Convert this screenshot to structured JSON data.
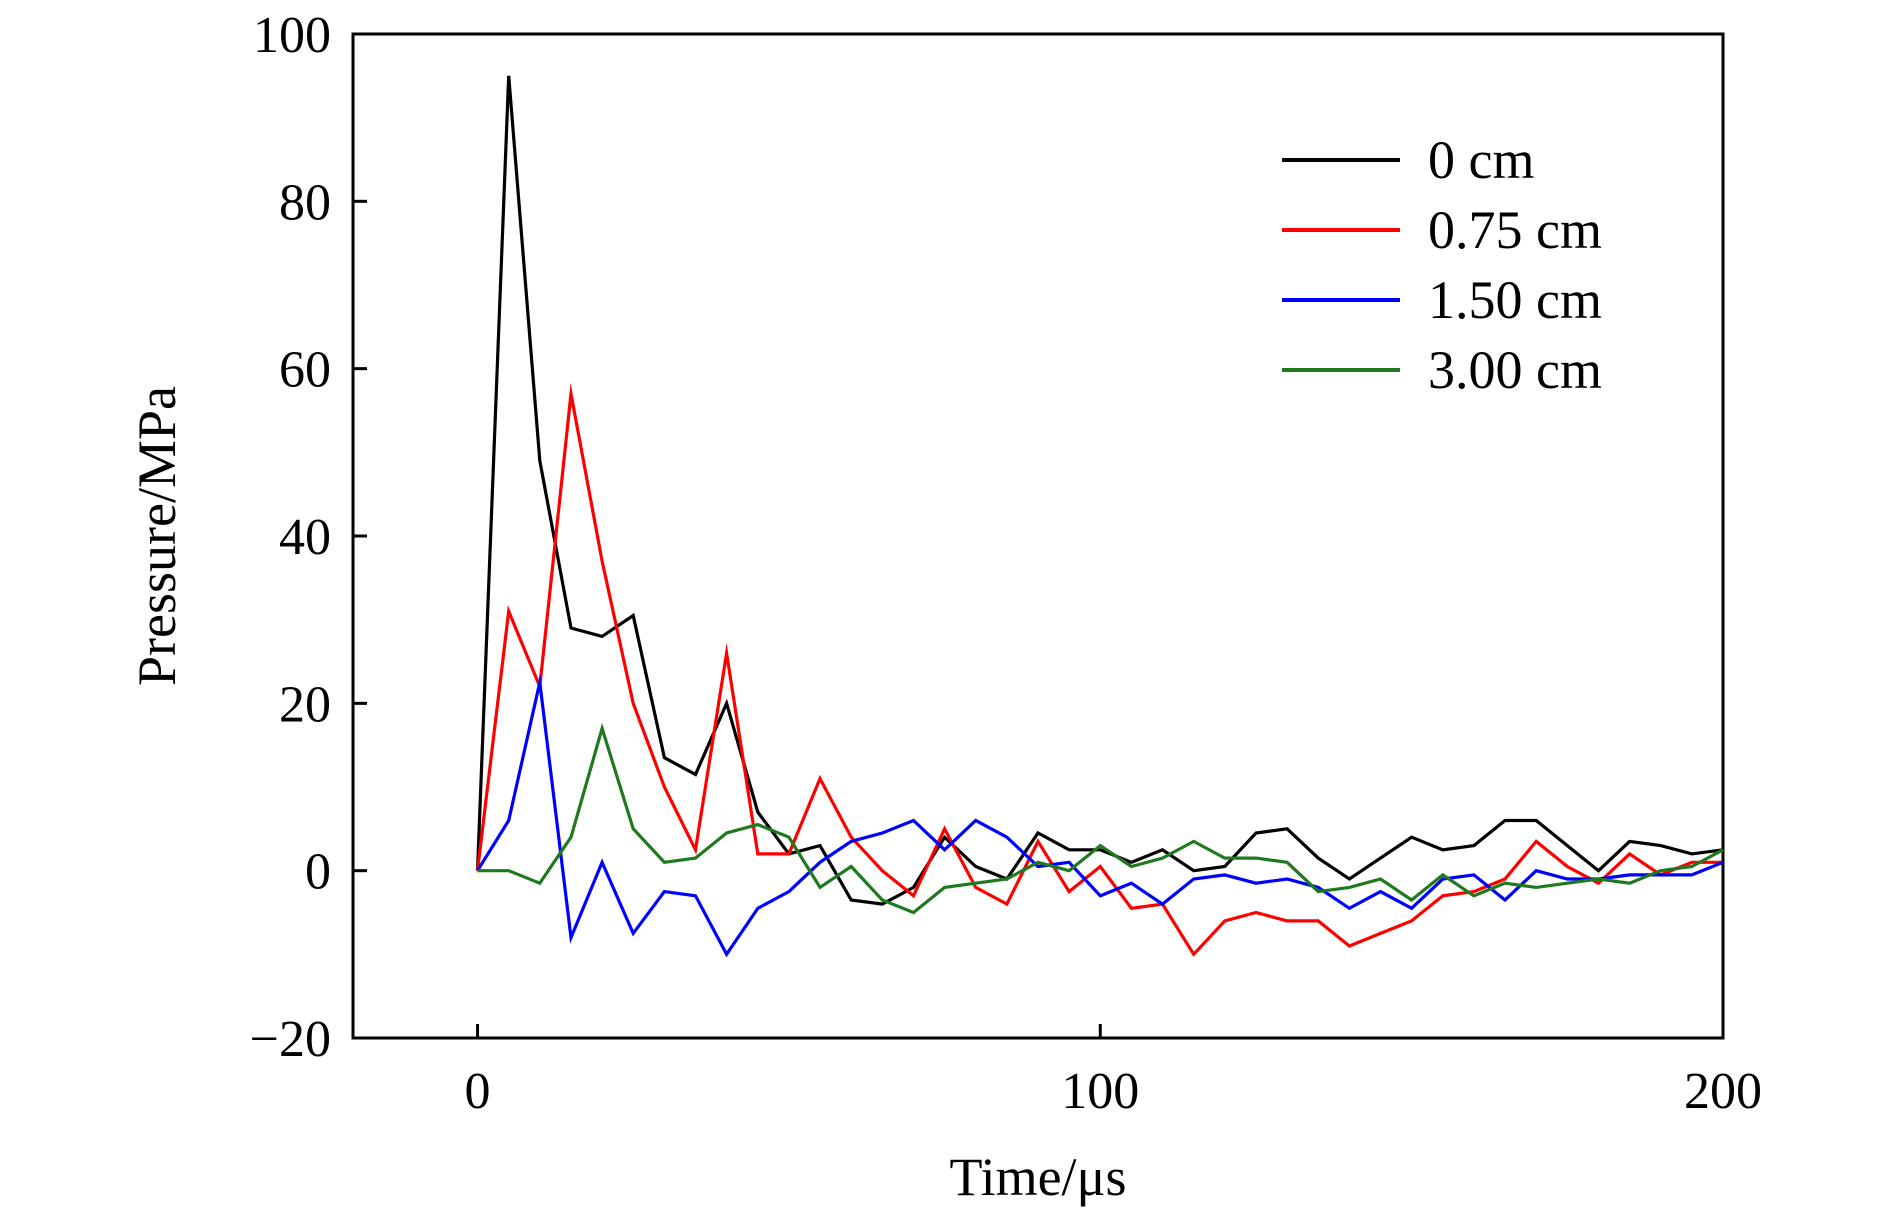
{
  "chart_data": {
    "type": "line",
    "title": "",
    "xlabel": "Time/μs",
    "ylabel": "Pressure/MPa",
    "xlim": [
      -20,
      200
    ],
    "ylim": [
      -20,
      100
    ],
    "xticks": [
      0,
      100,
      200
    ],
    "yticks": [
      -20,
      0,
      20,
      40,
      60,
      80,
      100
    ],
    "xtick_labels": [
      "0",
      "100",
      "200"
    ],
    "ytick_labels": [
      "−20",
      "0",
      "20",
      "40",
      "60",
      "80",
      "100"
    ],
    "grid": false,
    "legend_position": "top-right",
    "series": [
      {
        "name": "0 cm",
        "color": "#000000",
        "x": [
          0,
          5,
          10,
          15,
          20,
          25,
          30,
          35,
          40,
          45,
          50,
          55,
          60,
          65,
          70,
          75,
          80,
          85,
          90,
          95,
          100,
          105,
          110,
          115,
          120,
          125,
          130,
          135,
          140,
          145,
          150,
          155,
          160,
          165,
          170,
          175,
          180,
          185,
          190,
          195,
          200
        ],
        "y": [
          0,
          95,
          49,
          29,
          28,
          30.5,
          13.5,
          11.5,
          20,
          7,
          2,
          3,
          -3.5,
          -4,
          -2,
          4,
          0.5,
          -1,
          4.5,
          2.5,
          2.5,
          1,
          2.5,
          0,
          0.5,
          4.5,
          5,
          1.5,
          -1,
          1.5,
          4,
          2.5,
          3,
          6,
          6,
          3,
          0,
          3.5,
          3,
          2,
          2.5
        ]
      },
      {
        "name": "0.75 cm",
        "color": "#ff0000",
        "x": [
          0,
          5,
          10,
          15,
          20,
          25,
          30,
          35,
          40,
          45,
          50,
          55,
          60,
          65,
          70,
          75,
          80,
          85,
          90,
          95,
          100,
          105,
          110,
          115,
          120,
          125,
          130,
          135,
          140,
          145,
          150,
          155,
          160,
          165,
          170,
          175,
          180,
          185,
          190,
          195,
          200
        ],
        "y": [
          0,
          31,
          22,
          57,
          37,
          20,
          10,
          2.5,
          26,
          2,
          2,
          11,
          4,
          0,
          -3,
          5,
          -2,
          -4,
          3.5,
          -2.5,
          0.5,
          -4.5,
          -4,
          -10,
          -6,
          -5,
          -6,
          -6,
          -9,
          -7.5,
          -6,
          -3,
          -2.5,
          -1,
          3.5,
          0.5,
          -1.5,
          2,
          -0.5,
          1,
          1
        ]
      },
      {
        "name": "1.50 cm",
        "color": "#0000ff",
        "x": [
          0,
          5,
          10,
          15,
          20,
          25,
          30,
          35,
          40,
          45,
          50,
          55,
          60,
          65,
          70,
          75,
          80,
          85,
          90,
          95,
          100,
          105,
          110,
          115,
          120,
          125,
          130,
          135,
          140,
          145,
          150,
          155,
          160,
          165,
          170,
          175,
          180,
          185,
          190,
          195,
          200
        ],
        "y": [
          0,
          6,
          22.5,
          -8,
          1,
          -7.5,
          -2.5,
          -3,
          -10,
          -4.5,
          -2.5,
          1,
          3.5,
          4.5,
          6,
          2.5,
          6,
          4,
          0.5,
          1,
          -3,
          -1.5,
          -4,
          -1,
          -0.5,
          -1.5,
          -1,
          -2,
          -4.5,
          -2.5,
          -4.5,
          -1,
          -0.5,
          -3.5,
          0,
          -1,
          -1,
          -0.5,
          -0.5,
          -0.5,
          1
        ]
      },
      {
        "name": "3.00 cm",
        "color": "#1f7a1f",
        "x": [
          0,
          5,
          10,
          15,
          20,
          25,
          30,
          35,
          40,
          45,
          50,
          55,
          60,
          65,
          70,
          75,
          80,
          85,
          90,
          95,
          100,
          105,
          110,
          115,
          120,
          125,
          130,
          135,
          140,
          145,
          150,
          155,
          160,
          165,
          170,
          175,
          180,
          185,
          190,
          195,
          200
        ],
        "y": [
          0,
          0,
          -1.5,
          4,
          17,
          5,
          1,
          1.5,
          4.5,
          5.5,
          4,
          -2,
          0.5,
          -3.5,
          -5,
          -2,
          -1.5,
          -1,
          1,
          0,
          3,
          0.5,
          1.5,
          3.5,
          1.5,
          1.5,
          1,
          -2.5,
          -2,
          -1,
          -3.5,
          -0.5,
          -3,
          -1.5,
          -2,
          -1.5,
          -1,
          -1.5,
          0,
          0.5,
          2.5
        ]
      }
    ]
  }
}
